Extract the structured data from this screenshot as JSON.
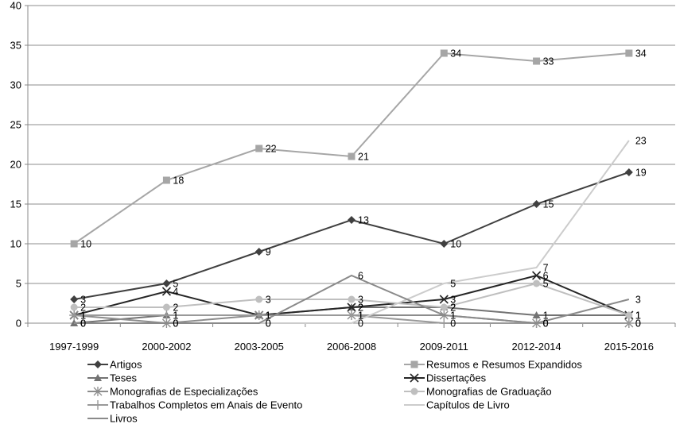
{
  "chart_data": {
    "type": "line",
    "title": "",
    "xlabel": "",
    "ylabel": "",
    "ylim": [
      0,
      40
    ],
    "yticks": [
      "0",
      "5",
      "10",
      "15",
      "20",
      "25",
      "30",
      "35",
      "40"
    ],
    "categories": [
      "1997-1999",
      "2000-2002",
      "2003-2005",
      "2006-2008",
      "2009-2011",
      "2012-2014",
      "2015-2016"
    ],
    "grid": true,
    "legend_position": "bottom",
    "series": [
      {
        "name": "Artigos",
        "values": [
          3,
          5,
          9,
          13,
          10,
          15,
          19
        ],
        "color": "#404040",
        "marker": "diamond",
        "labels": [
          "3",
          "5",
          "9",
          "13",
          "10",
          "15",
          "19"
        ]
      },
      {
        "name": "Resumos e Resumos Expandidos",
        "values": [
          10,
          18,
          22,
          21,
          34,
          33,
          34
        ],
        "color": "#a6a6a6",
        "marker": "square",
        "labels": [
          "10",
          "18",
          "22",
          "21",
          "34",
          "33",
          "34"
        ]
      },
      {
        "name": "Teses",
        "values": [
          0,
          1,
          1,
          2,
          2,
          1,
          1
        ],
        "color": "#737373",
        "marker": "triangle",
        "labels": [
          "0",
          "1",
          "1",
          "2",
          "2",
          "1",
          "1"
        ]
      },
      {
        "name": "Dissertações",
        "values": [
          1,
          4,
          1,
          2,
          3,
          6,
          1
        ],
        "color": "#262626",
        "marker": "x",
        "labels": [
          "1",
          "4",
          "1",
          "2",
          "3",
          "6",
          "1"
        ]
      },
      {
        "name": "Monografias de Especializações",
        "values": [
          1,
          0,
          1,
          1,
          1,
          0,
          0
        ],
        "color": "#8c8c8c",
        "marker": "star",
        "labels": [
          "1",
          "0",
          "1",
          "1",
          "1",
          "0",
          "0"
        ]
      },
      {
        "name": "Monografias de Graduação",
        "values": [
          2,
          2,
          3,
          3,
          2,
          5,
          1
        ],
        "color": "#bfbfbf",
        "marker": "circle",
        "labels": [
          "2",
          "2",
          "3",
          "3",
          "2",
          "5",
          "1"
        ]
      },
      {
        "name": "Trabalhos Completos em Anais de Evento",
        "values": [
          1,
          1,
          1,
          1,
          0,
          0,
          0
        ],
        "color": "#999999",
        "marker": "plus",
        "labels": [
          "1",
          "1",
          "1",
          "1",
          "0",
          "0",
          "0"
        ]
      },
      {
        "name": "Capítulos de Livro",
        "values": [
          0,
          0,
          0,
          0,
          5,
          7,
          23
        ],
        "color": "#cccccc",
        "marker": "none",
        "labels": [
          "0",
          "0",
          "0",
          "0",
          "5",
          "7",
          "23"
        ]
      },
      {
        "name": "Livros",
        "values": [
          0,
          0,
          0,
          6,
          1,
          0,
          3
        ],
        "color": "#8a8a8a",
        "marker": "none",
        "labels": [
          "0",
          "0",
          "0",
          "6",
          "1",
          "0",
          "3"
        ]
      }
    ]
  }
}
